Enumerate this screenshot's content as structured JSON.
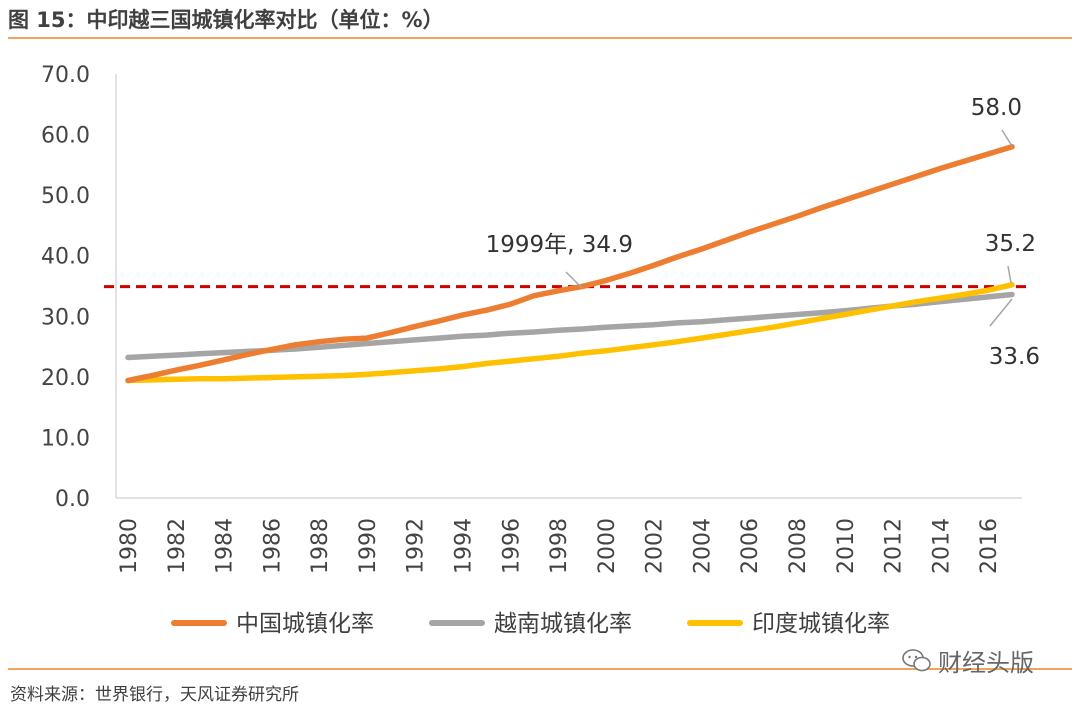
{
  "figure": {
    "title": "图 15：中印越三国城镇化率对比（单位：%）",
    "source": "资料来源：世界银行，天风证券研究所",
    "watermark": "财经头版"
  },
  "colors": {
    "china": "#ed7d31",
    "vietnam": "#a5a5a5",
    "india": "#ffc000",
    "reference": "#d00000",
    "rule": "#f0a35b"
  },
  "chart_data": {
    "type": "line",
    "title": "图 15：中印越三国城镇化率对比（单位：%）",
    "xlabel": "",
    "ylabel": "",
    "ylim": [
      0,
      70
    ],
    "yticks": [
      "0.0",
      "10.0",
      "20.0",
      "30.0",
      "40.0",
      "50.0",
      "60.0",
      "70.0"
    ],
    "ytick_values": [
      0,
      10,
      20,
      30,
      40,
      50,
      60,
      70
    ],
    "x": [
      1980,
      1981,
      1982,
      1983,
      1984,
      1985,
      1986,
      1987,
      1988,
      1989,
      1990,
      1991,
      1992,
      1993,
      1994,
      1995,
      1996,
      1997,
      1998,
      1999,
      2000,
      2001,
      2002,
      2003,
      2004,
      2005,
      2006,
      2007,
      2008,
      2009,
      2010,
      2011,
      2012,
      2013,
      2014,
      2015,
      2016,
      2017
    ],
    "xticks": [
      "1980",
      "1982",
      "1984",
      "1986",
      "1988",
      "1990",
      "1992",
      "1994",
      "1996",
      "1998",
      "2000",
      "2002",
      "2004",
      "2006",
      "2008",
      "2010",
      "2012",
      "2014",
      "2016"
    ],
    "series": [
      {
        "name": "中国城镇化率",
        "color": "#ed7d31",
        "values": [
          19.4,
          20.2,
          21.1,
          21.9,
          22.8,
          23.7,
          24.5,
          25.3,
          25.8,
          26.2,
          26.4,
          27.3,
          28.3,
          29.2,
          30.2,
          31.0,
          32.0,
          33.4,
          34.2,
          34.9,
          35.9,
          37.1,
          38.4,
          39.8,
          41.1,
          42.5,
          43.9,
          45.2,
          46.5,
          47.9,
          49.2,
          50.5,
          51.8,
          53.1,
          54.4,
          55.6,
          56.8,
          58.0
        ]
      },
      {
        "name": "越南城镇化率",
        "color": "#a5a5a5",
        "values": [
          23.2,
          23.4,
          23.6,
          23.8,
          24.0,
          24.2,
          24.4,
          24.6,
          24.9,
          25.2,
          25.5,
          25.8,
          26.1,
          26.4,
          26.7,
          26.9,
          27.2,
          27.4,
          27.7,
          27.9,
          28.2,
          28.4,
          28.6,
          28.9,
          29.1,
          29.4,
          29.7,
          30.0,
          30.3,
          30.6,
          30.9,
          31.3,
          31.7,
          32.0,
          32.4,
          32.8,
          33.2,
          33.6
        ]
      },
      {
        "name": "印度城镇化率",
        "color": "#ffc000",
        "values": [
          19.4,
          19.5,
          19.6,
          19.7,
          19.7,
          19.8,
          19.9,
          20.0,
          20.1,
          20.2,
          20.4,
          20.7,
          21.0,
          21.3,
          21.7,
          22.2,
          22.6,
          23.0,
          23.4,
          23.9,
          24.3,
          24.8,
          25.3,
          25.8,
          26.4,
          27.0,
          27.6,
          28.2,
          28.9,
          29.6,
          30.3,
          31.0,
          31.7,
          32.4,
          33.0,
          33.6,
          34.3,
          35.2
        ]
      }
    ],
    "reference_line": {
      "y": 34.9,
      "style": "dashed",
      "color": "#d00000"
    },
    "annotations": [
      {
        "text": "58.0",
        "year": 2017,
        "value": 58.0
      },
      {
        "text": "1999年, 34.9",
        "year": 1999,
        "value": 34.9
      },
      {
        "text": "35.2",
        "year": 2017,
        "value": 35.2
      },
      {
        "text": "33.6",
        "year": 2017,
        "value": 33.6
      }
    ],
    "legend": {
      "position": "bottom",
      "entries": [
        "中国城镇化率",
        "越南城镇化率",
        "印度城镇化率"
      ]
    }
  }
}
